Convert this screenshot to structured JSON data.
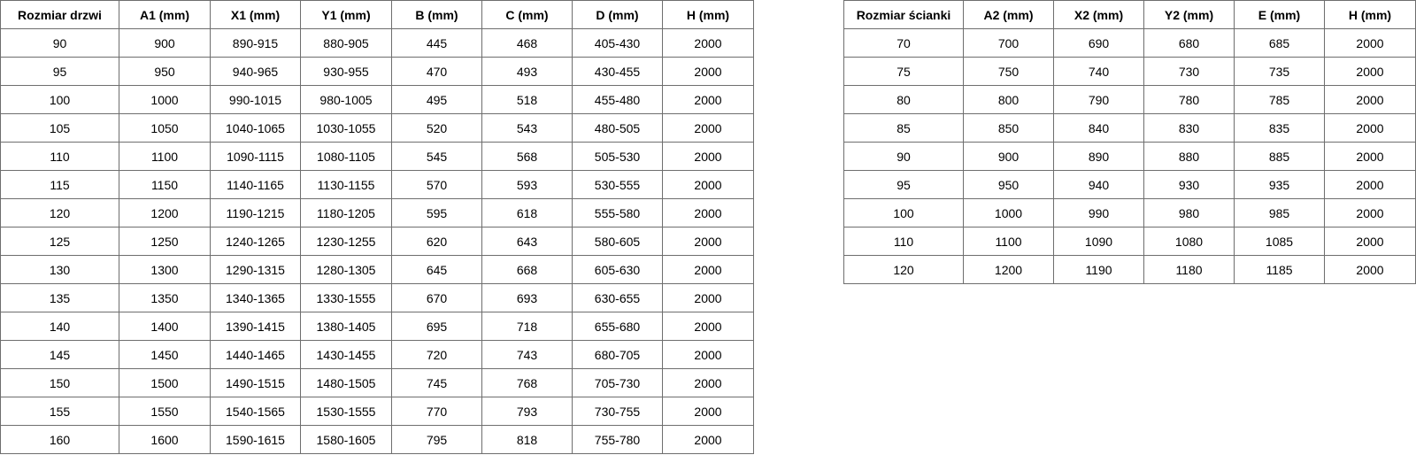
{
  "doors_table": {
    "headers": [
      "Rozmiar drzwi",
      "A1 (mm)",
      "X1 (mm)",
      "Y1 (mm)",
      "B (mm)",
      "C (mm)",
      "D (mm)",
      "H (mm)"
    ],
    "rows": [
      [
        "90",
        "900",
        "890-915",
        "880-905",
        "445",
        "468",
        "405-430",
        "2000"
      ],
      [
        "95",
        "950",
        "940-965",
        "930-955",
        "470",
        "493",
        "430-455",
        "2000"
      ],
      [
        "100",
        "1000",
        "990-1015",
        "980-1005",
        "495",
        "518",
        "455-480",
        "2000"
      ],
      [
        "105",
        "1050",
        "1040-1065",
        "1030-1055",
        "520",
        "543",
        "480-505",
        "2000"
      ],
      [
        "110",
        "1100",
        "1090-1115",
        "1080-1105",
        "545",
        "568",
        "505-530",
        "2000"
      ],
      [
        "115",
        "1150",
        "1140-1165",
        "1130-1155",
        "570",
        "593",
        "530-555",
        "2000"
      ],
      [
        "120",
        "1200",
        "1190-1215",
        "1180-1205",
        "595",
        "618",
        "555-580",
        "2000"
      ],
      [
        "125",
        "1250",
        "1240-1265",
        "1230-1255",
        "620",
        "643",
        "580-605",
        "2000"
      ],
      [
        "130",
        "1300",
        "1290-1315",
        "1280-1305",
        "645",
        "668",
        "605-630",
        "2000"
      ],
      [
        "135",
        "1350",
        "1340-1365",
        "1330-1555",
        "670",
        "693",
        "630-655",
        "2000"
      ],
      [
        "140",
        "1400",
        "1390-1415",
        "1380-1405",
        "695",
        "718",
        "655-680",
        "2000"
      ],
      [
        "145",
        "1450",
        "1440-1465",
        "1430-1455",
        "720",
        "743",
        "680-705",
        "2000"
      ],
      [
        "150",
        "1500",
        "1490-1515",
        "1480-1505",
        "745",
        "768",
        "705-730",
        "2000"
      ],
      [
        "155",
        "1550",
        "1540-1565",
        "1530-1555",
        "770",
        "793",
        "730-755",
        "2000"
      ],
      [
        "160",
        "1600",
        "1590-1615",
        "1580-1605",
        "795",
        "818",
        "755-780",
        "2000"
      ]
    ]
  },
  "walls_table": {
    "headers": [
      "Rozmiar ścianki",
      "A2 (mm)",
      "X2 (mm)",
      "Y2 (mm)",
      "E (mm)",
      "H (mm)"
    ],
    "rows": [
      [
        "70",
        "700",
        "690",
        "680",
        "685",
        "2000"
      ],
      [
        "75",
        "750",
        "740",
        "730",
        "735",
        "2000"
      ],
      [
        "80",
        "800",
        "790",
        "780",
        "785",
        "2000"
      ],
      [
        "85",
        "850",
        "840",
        "830",
        "835",
        "2000"
      ],
      [
        "90",
        "900",
        "890",
        "880",
        "885",
        "2000"
      ],
      [
        "95",
        "950",
        "940",
        "930",
        "935",
        "2000"
      ],
      [
        "100",
        "1000",
        "990",
        "980",
        "985",
        "2000"
      ],
      [
        "110",
        "1100",
        "1090",
        "1080",
        "1085",
        "2000"
      ],
      [
        "120",
        "1200",
        "1190",
        "1180",
        "1185",
        "2000"
      ]
    ]
  }
}
